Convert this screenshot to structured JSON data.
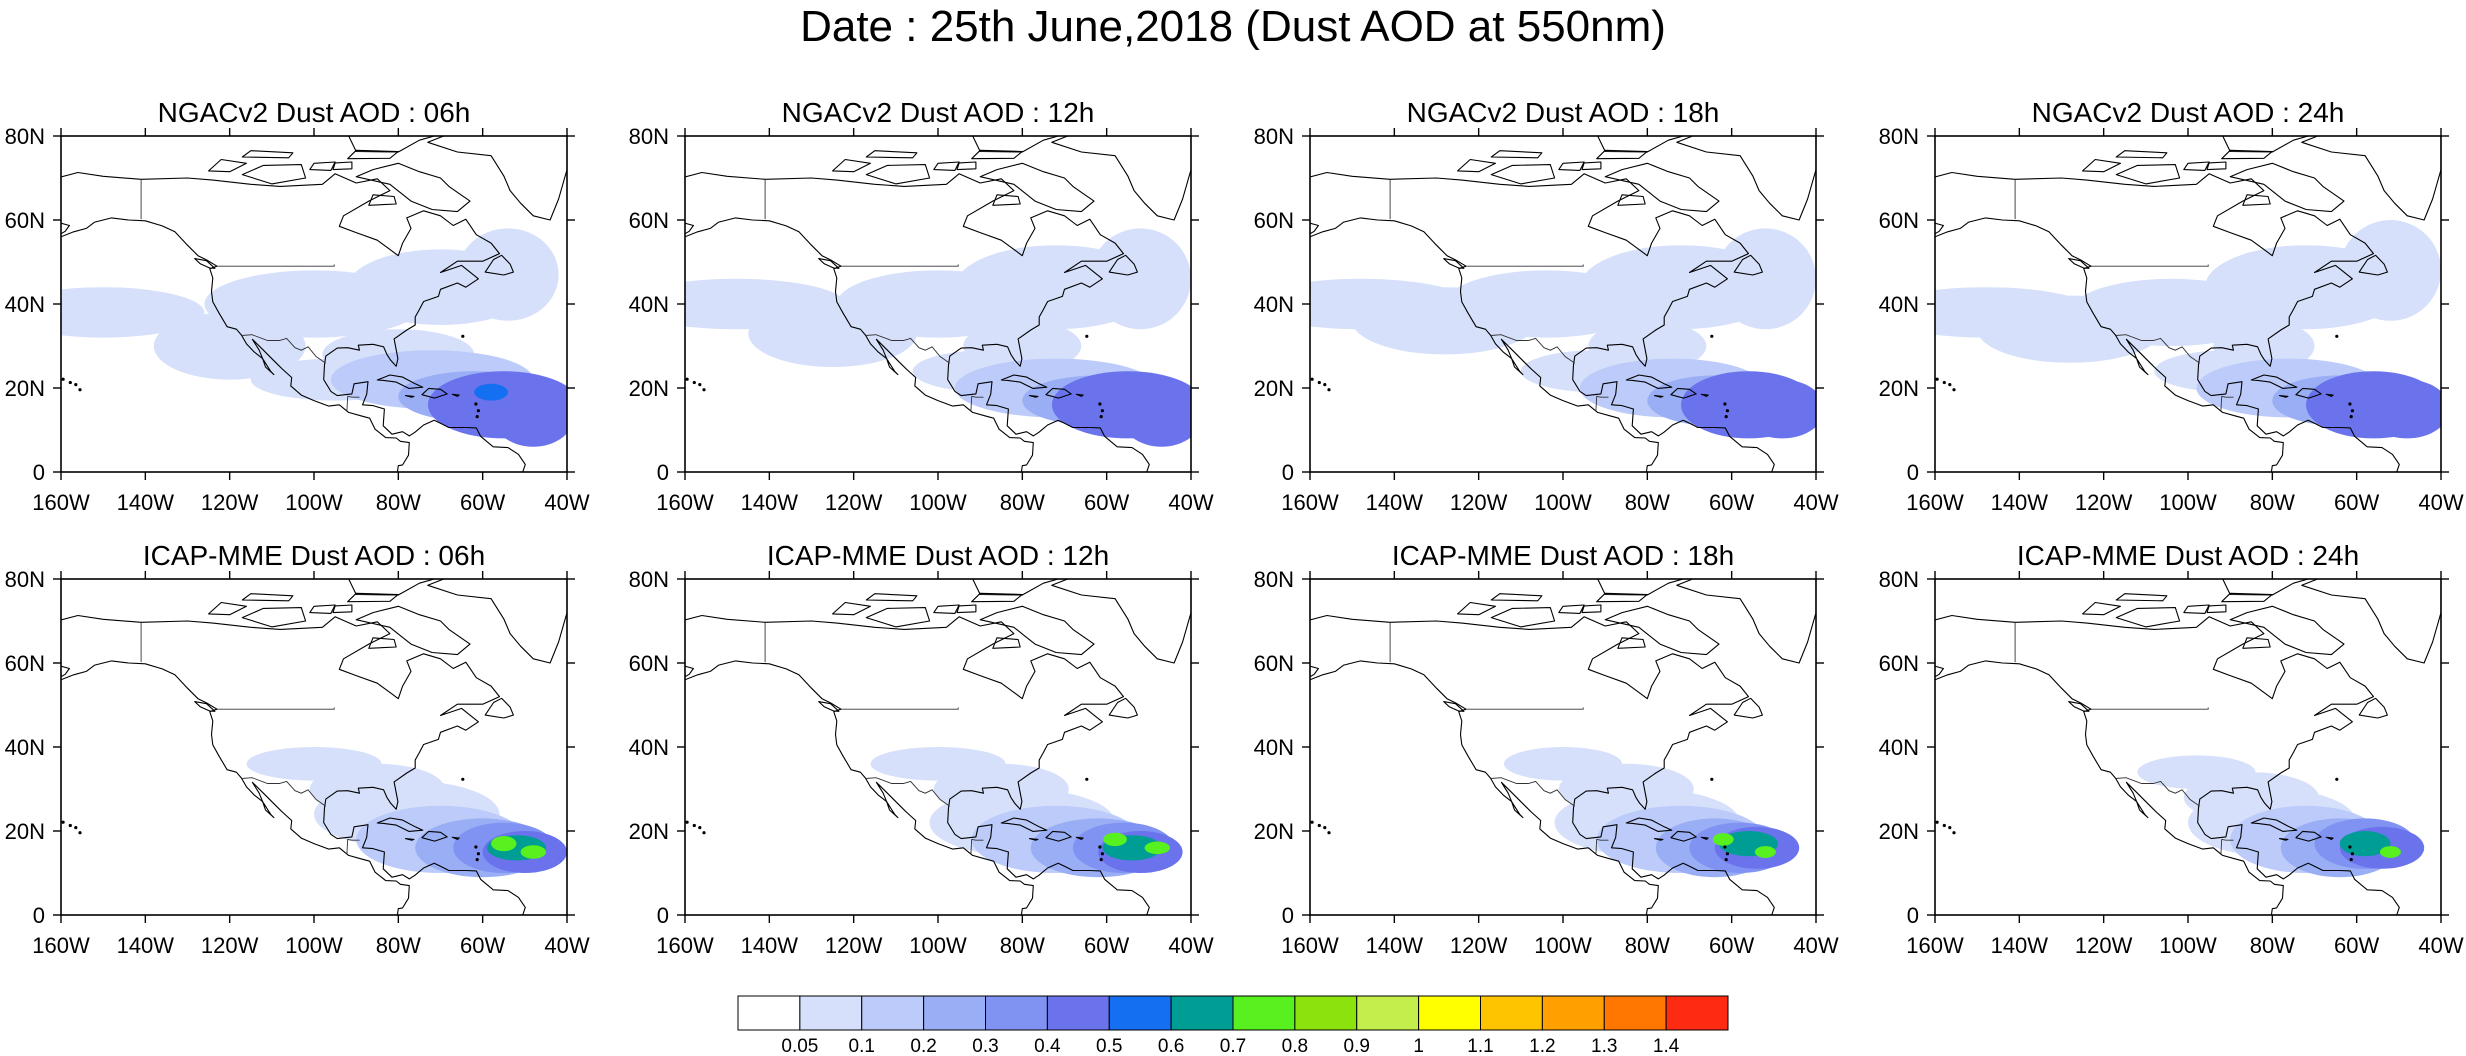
{
  "title": "Date : 25th June,2018 (Dust AOD at 550nm)",
  "rows": [
    {
      "model": "NGACv2",
      "panels": [
        {
          "title": "NGACv2 Dust AOD : 06h",
          "hour": "06h"
        },
        {
          "title": "NGACv2 Dust AOD : 12h",
          "hour": "12h"
        },
        {
          "title": "NGACv2 Dust AOD : 18h",
          "hour": "18h"
        },
        {
          "title": "NGACv2 Dust AOD : 24h",
          "hour": "24h"
        }
      ]
    },
    {
      "model": "ICAP-MME",
      "panels": [
        {
          "title": "ICAP-MME Dust AOD : 06h",
          "hour": "06h"
        },
        {
          "title": "ICAP-MME Dust AOD : 12h",
          "hour": "12h"
        },
        {
          "title": "ICAP-MME Dust AOD : 18h",
          "hour": "18h"
        },
        {
          "title": "ICAP-MME Dust AOD : 24h",
          "hour": "24h"
        }
      ]
    }
  ],
  "map": {
    "lon_range": [
      -160,
      -40
    ],
    "lat_range": [
      0,
      80
    ],
    "lon_ticks": [
      "160W",
      "140W",
      "120W",
      "100W",
      "80W",
      "60W",
      "40W"
    ],
    "lat_ticks": [
      "0",
      "20N",
      "40N",
      "60N",
      "80N"
    ]
  },
  "colorbar": {
    "labels": [
      "0.05",
      "0.1",
      "0.2",
      "0.3",
      "0.4",
      "0.5",
      "0.6",
      "0.7",
      "0.8",
      "0.9",
      "1",
      "1.1",
      "1.2",
      "1.3",
      "1.4"
    ],
    "colors": [
      "#ffffff",
      "#d6e0fb",
      "#bccbf9",
      "#99aef5",
      "#8093f2",
      "#6a73ec",
      "#1470f0",
      "#009d94",
      "#58f01e",
      "#8ce20d",
      "#c4ee4c",
      "#ffff00",
      "#ffc400",
      "#ffa000",
      "#ff7700",
      "#ff2a12"
    ]
  }
}
